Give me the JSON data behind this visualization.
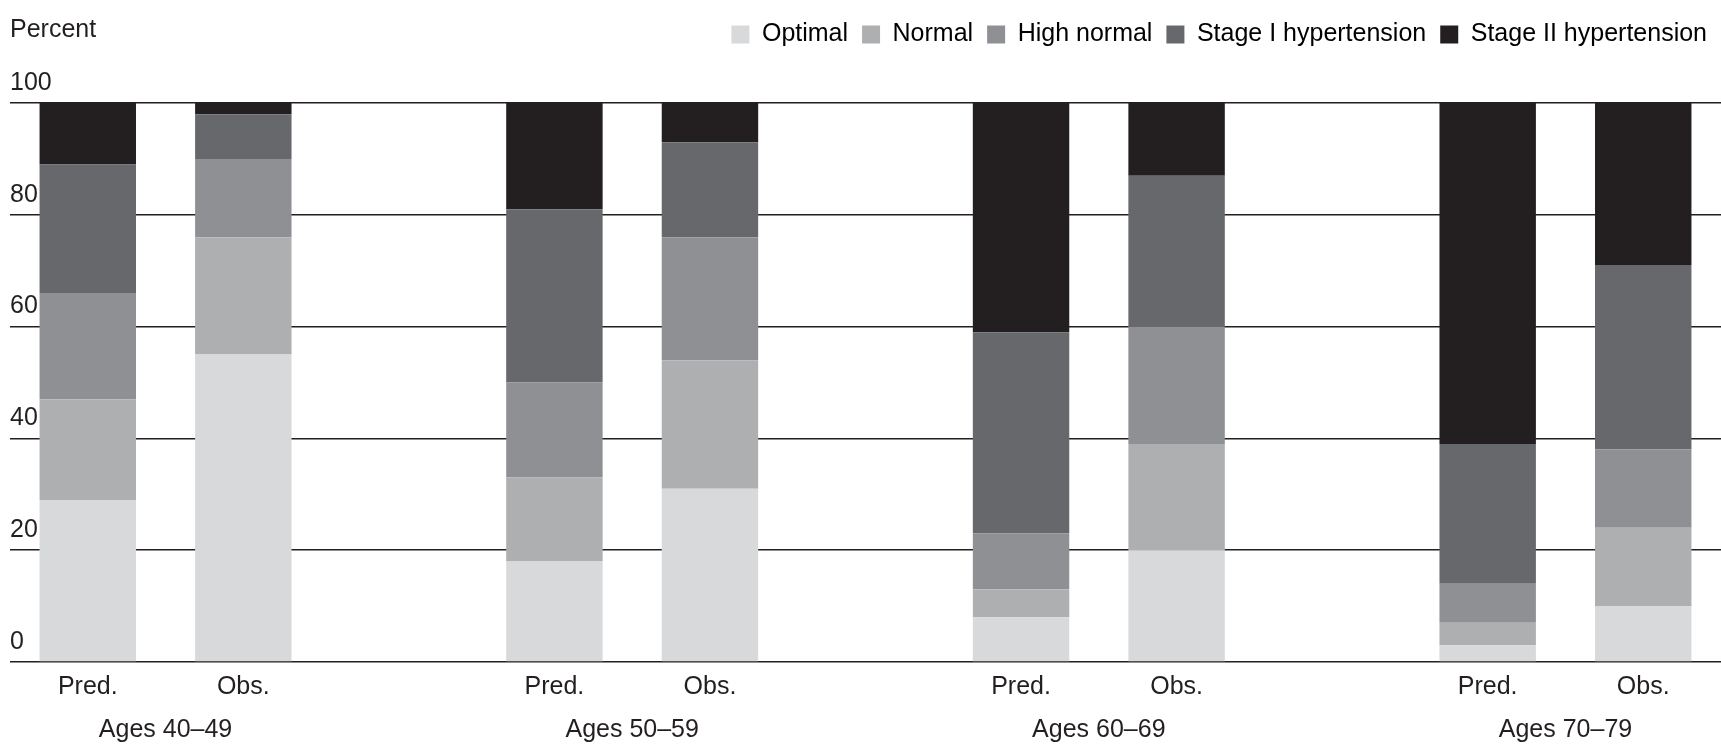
{
  "chart_data": {
    "type": "bar",
    "stacked": true,
    "ylabel": "Percent",
    "categories": [
      "Pred.",
      "Obs.",
      null,
      "Pred.",
      "Obs.",
      null,
      "Pred.",
      "Obs.",
      null,
      "Pred.",
      "Obs."
    ],
    "annotations": [
      "Ages 40–49",
      "Ages 50–59",
      "Ages 60–69",
      "Ages 70–79"
    ],
    "series": [
      {
        "name": "Optimal",
        "color": "#d8d9db",
        "values": [
          29,
          55,
          null,
          18,
          31,
          null,
          8,
          20,
          null,
          3,
          10
        ]
      },
      {
        "name": "Normal",
        "color": "#aeafb1",
        "values": [
          18,
          21,
          null,
          15,
          23,
          null,
          5,
          19,
          null,
          4,
          14
        ]
      },
      {
        "name": "High normal",
        "color": "#8f9094",
        "values": [
          19,
          14,
          null,
          17,
          22,
          null,
          10,
          21,
          null,
          7,
          14
        ]
      },
      {
        "name": "Stage I hypertension",
        "color": "#67686b",
        "values": [
          23,
          8,
          null,
          31,
          17,
          null,
          36,
          27,
          null,
          25,
          33
        ]
      },
      {
        "name": "Stage II hypertension",
        "color": "#231f20",
        "values": [
          11,
          2,
          null,
          19,
          7,
          null,
          41,
          13,
          null,
          61,
          29
        ]
      }
    ],
    "ylim": [
      0,
      100
    ],
    "yticks": [
      0,
      20,
      40,
      60,
      80,
      100
    ],
    "grid": "y",
    "legend": "top right"
  }
}
